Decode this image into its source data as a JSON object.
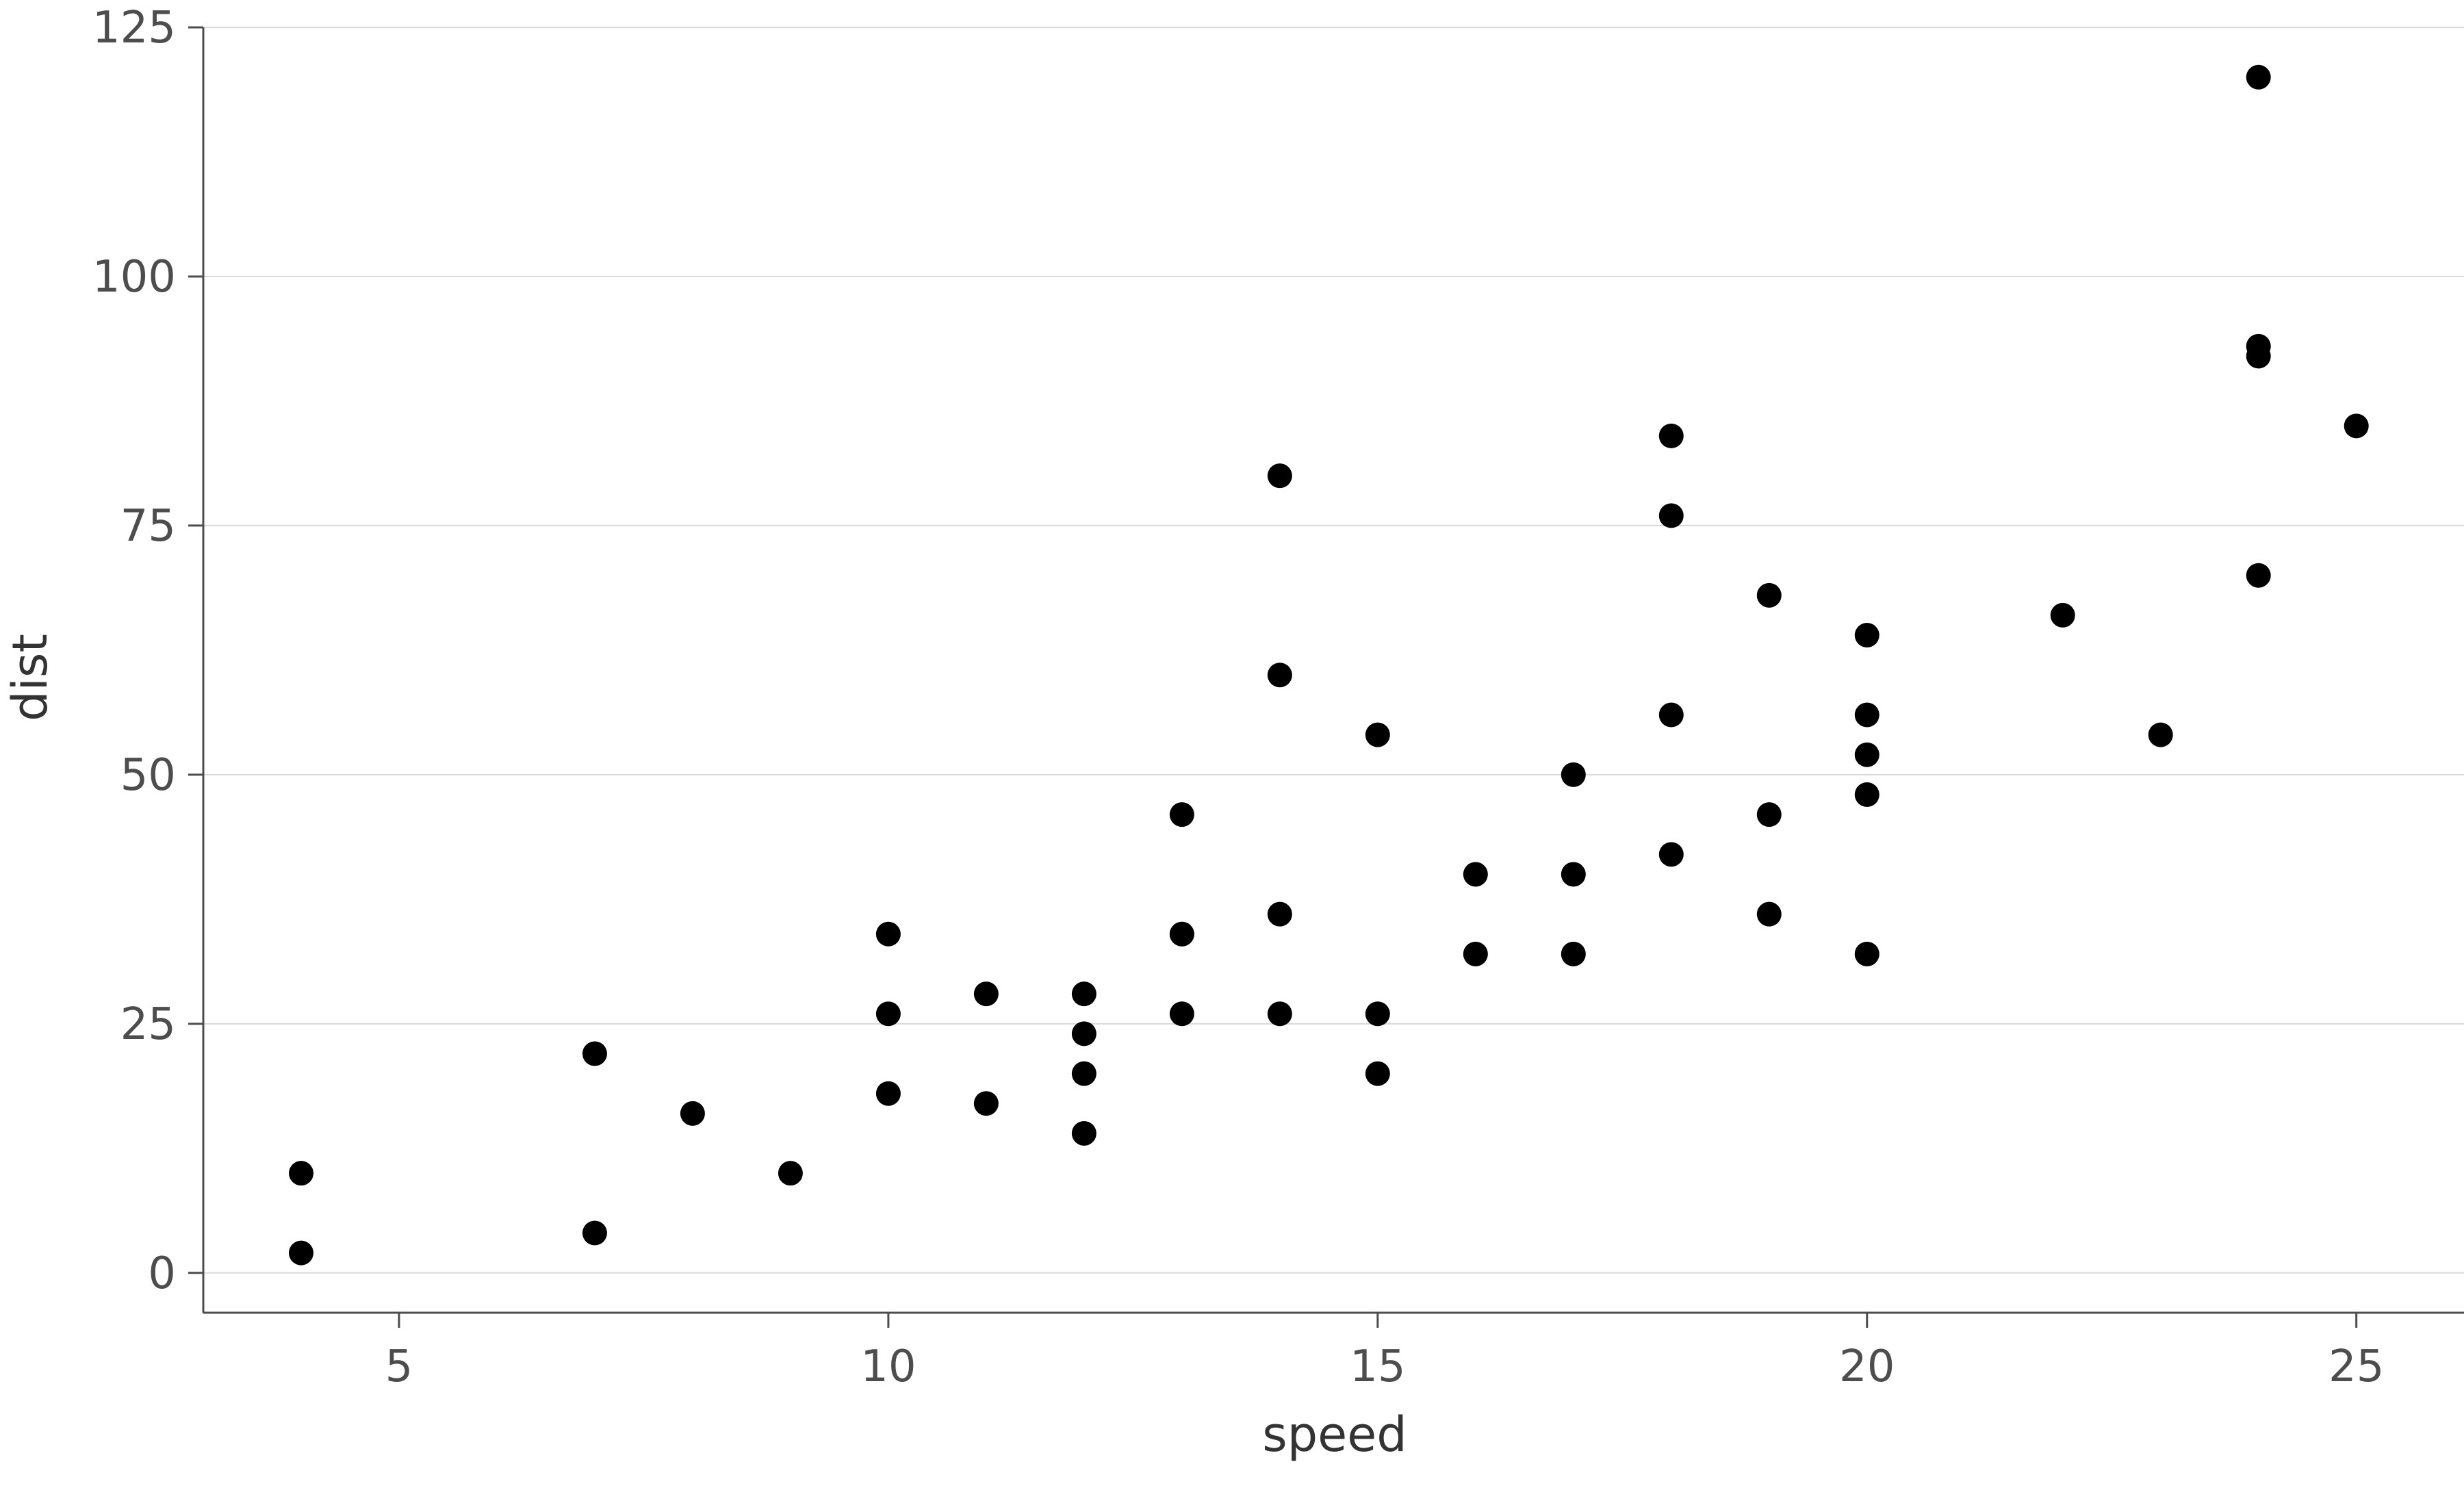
{
  "chart_data": {
    "type": "scatter",
    "title": "",
    "xlabel": "speed",
    "ylabel": "dist",
    "xlim": [
      3,
      26.1
    ],
    "ylim": [
      -4,
      125
    ],
    "x_ticks": [
      5,
      10,
      15,
      20,
      25
    ],
    "y_ticks": [
      0,
      25,
      50,
      75,
      100,
      125
    ],
    "x_tick_labels": [
      "5",
      "10",
      "15",
      "20",
      "25"
    ],
    "y_tick_labels": [
      "0",
      "25",
      "50",
      "75",
      "100",
      "125"
    ],
    "grid": "horizontal",
    "legend": "none",
    "colors": {
      "point": "#000000",
      "grid": "#d9d9d9",
      "axis": "#4d4d4d",
      "text": "#4d4d4d"
    },
    "points": [
      {
        "x": 4,
        "y": 2
      },
      {
        "x": 4,
        "y": 10
      },
      {
        "x": 7,
        "y": 4
      },
      {
        "x": 7,
        "y": 22
      },
      {
        "x": 8,
        "y": 16
      },
      {
        "x": 9,
        "y": 10
      },
      {
        "x": 10,
        "y": 18
      },
      {
        "x": 10,
        "y": 26
      },
      {
        "x": 10,
        "y": 34
      },
      {
        "x": 11,
        "y": 17
      },
      {
        "x": 11,
        "y": 28
      },
      {
        "x": 12,
        "y": 14
      },
      {
        "x": 12,
        "y": 20
      },
      {
        "x": 12,
        "y": 24
      },
      {
        "x": 12,
        "y": 28
      },
      {
        "x": 13,
        "y": 26
      },
      {
        "x": 13,
        "y": 34
      },
      {
        "x": 13,
        "y": 34
      },
      {
        "x": 13,
        "y": 46
      },
      {
        "x": 14,
        "y": 26
      },
      {
        "x": 14,
        "y": 36
      },
      {
        "x": 14,
        "y": 60
      },
      {
        "x": 14,
        "y": 80
      },
      {
        "x": 15,
        "y": 20
      },
      {
        "x": 15,
        "y": 26
      },
      {
        "x": 15,
        "y": 54
      },
      {
        "x": 16,
        "y": 32
      },
      {
        "x": 16,
        "y": 40
      },
      {
        "x": 17,
        "y": 32
      },
      {
        "x": 17,
        "y": 40
      },
      {
        "x": 17,
        "y": 50
      },
      {
        "x": 18,
        "y": 42
      },
      {
        "x": 18,
        "y": 56
      },
      {
        "x": 18,
        "y": 76
      },
      {
        "x": 18,
        "y": 84
      },
      {
        "x": 19,
        "y": 36
      },
      {
        "x": 19,
        "y": 46
      },
      {
        "x": 19,
        "y": 68
      },
      {
        "x": 20,
        "y": 32
      },
      {
        "x": 20,
        "y": 48
      },
      {
        "x": 20,
        "y": 52
      },
      {
        "x": 20,
        "y": 56
      },
      {
        "x": 20,
        "y": 64
      },
      {
        "x": 22,
        "y": 66
      },
      {
        "x": 23,
        "y": 54
      },
      {
        "x": 24,
        "y": 70
      },
      {
        "x": 24,
        "y": 92
      },
      {
        "x": 24,
        "y": 93
      },
      {
        "x": 24,
        "y": 120
      },
      {
        "x": 25,
        "y": 85
      }
    ]
  }
}
